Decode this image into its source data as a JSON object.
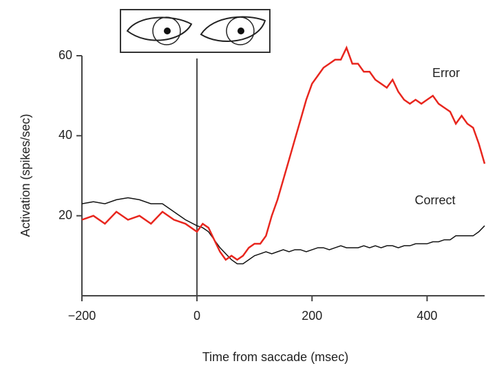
{
  "chart_data": {
    "type": "line",
    "xlabel": "Time from saccade (msec)",
    "ylabel": "Activation (spikes/sec)",
    "x": [
      -200,
      -180,
      -160,
      -140,
      -120,
      -100,
      -80,
      -60,
      -40,
      -20,
      0,
      10,
      20,
      30,
      40,
      50,
      60,
      70,
      80,
      90,
      100,
      110,
      120,
      130,
      140,
      150,
      160,
      170,
      180,
      190,
      200,
      210,
      220,
      230,
      240,
      250,
      260,
      270,
      280,
      290,
      300,
      310,
      320,
      330,
      340,
      350,
      360,
      370,
      380,
      390,
      400,
      410,
      420,
      430,
      440,
      450,
      460,
      470,
      480,
      490,
      500
    ],
    "series": [
      {
        "name": "Error",
        "color": "#e8261e",
        "values": [
          19,
          20,
          18,
          21,
          19,
          20,
          18,
          21,
          19,
          18,
          16,
          18,
          17,
          14,
          11,
          9,
          10,
          9,
          10,
          12,
          13,
          13,
          15,
          20,
          24,
          29,
          34,
          39,
          44,
          49,
          53,
          55,
          57,
          58,
          59,
          59,
          62,
          58,
          58,
          56,
          56,
          54,
          53,
          52,
          54,
          51,
          49,
          48,
          49,
          48,
          49,
          50,
          48,
          47,
          46,
          43,
          45,
          43,
          42,
          38,
          33
        ]
      },
      {
        "name": "Correct",
        "color": "#111111",
        "values": [
          23,
          23.5,
          23,
          24,
          24.5,
          24,
          23,
          23,
          21,
          19,
          17.5,
          17,
          16,
          14,
          12,
          10.5,
          9,
          8,
          8,
          9,
          10,
          10.5,
          11,
          10.5,
          11,
          11.5,
          11,
          11.5,
          11.5,
          11,
          11.5,
          12,
          12,
          11.5,
          12,
          12.5,
          12,
          12,
          12,
          12.5,
          12,
          12.5,
          12,
          12.5,
          12.5,
          12,
          12.5,
          12.5,
          13,
          13,
          13,
          13.5,
          13.5,
          14,
          14,
          15,
          15,
          15,
          15,
          16,
          17.5
        ]
      }
    ],
    "xlim": [
      -200,
      500
    ],
    "xticks": [
      {
        "value": -200,
        "label": "−200"
      },
      0,
      200,
      400
    ],
    "ylim": [
      0,
      60
    ],
    "yticks": [
      20,
      40,
      60
    ],
    "vline": 0
  }
}
